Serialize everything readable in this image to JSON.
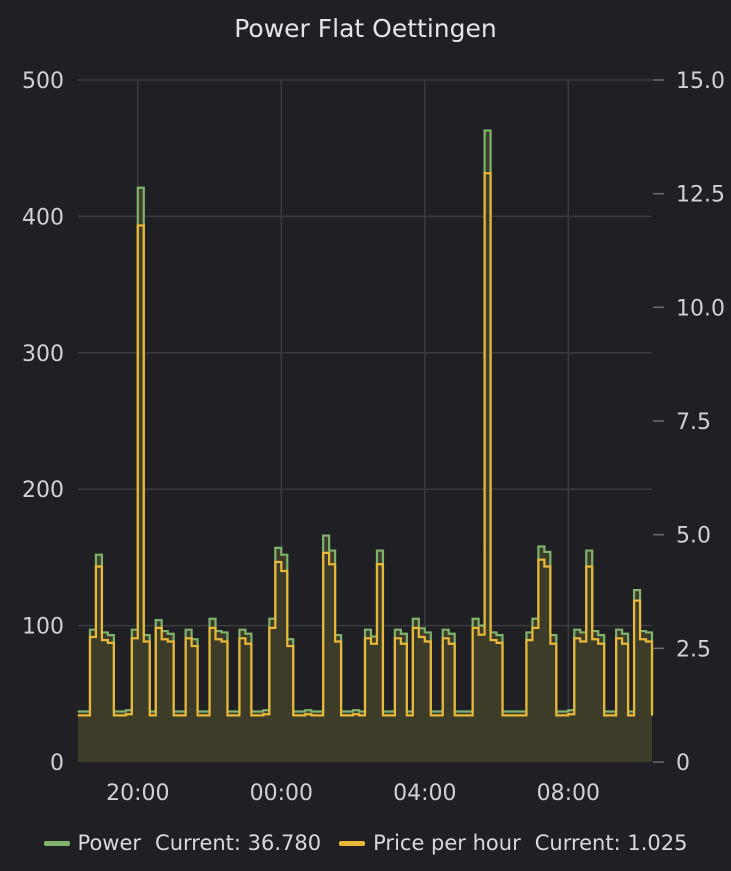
{
  "chart_data": {
    "type": "line",
    "title": "Power Flat Oettingen",
    "x_tick_labels": [
      "20:00",
      "00:00",
      "04:00",
      "08:00"
    ],
    "x_range": [
      "18:20",
      "10:20"
    ],
    "y_left": {
      "range": [
        0,
        500
      ],
      "ticks": [
        "0",
        "100",
        "200",
        "300",
        "400",
        "500"
      ]
    },
    "y_right": {
      "range": [
        0,
        15
      ],
      "ticks": [
        "0",
        "2.5",
        "5.0",
        "7.5",
        "10.0",
        "12.5",
        "15.0"
      ]
    },
    "grid": true,
    "legend_position": "bottom",
    "series": [
      {
        "name": "Power",
        "axis": "left",
        "color": "#7eb26d",
        "fill": true,
        "legend_text": "Current: 36.780",
        "x": [
          "18:20",
          "18:30",
          "18:40",
          "18:50",
          "19:00",
          "19:10",
          "19:20",
          "19:30",
          "19:40",
          "19:50",
          "20:00",
          "20:10",
          "20:20",
          "20:30",
          "20:40",
          "20:50",
          "21:00",
          "21:10",
          "21:20",
          "21:30",
          "21:40",
          "21:50",
          "22:00",
          "22:10",
          "22:20",
          "22:30",
          "22:40",
          "22:50",
          "23:00",
          "23:10",
          "23:20",
          "23:30",
          "23:40",
          "23:50",
          "00:00",
          "00:10",
          "00:20",
          "00:30",
          "00:40",
          "00:50",
          "01:00",
          "01:10",
          "01:20",
          "01:30",
          "01:40",
          "01:50",
          "02:00",
          "02:10",
          "02:20",
          "02:30",
          "02:40",
          "02:50",
          "03:00",
          "03:10",
          "03:20",
          "03:30",
          "03:40",
          "03:50",
          "04:00",
          "04:10",
          "04:20",
          "04:30",
          "04:40",
          "04:50",
          "05:00",
          "05:10",
          "05:20",
          "05:30",
          "05:40",
          "05:50",
          "06:00",
          "06:10",
          "06:20",
          "06:30",
          "06:40",
          "06:50",
          "07:00",
          "07:10",
          "07:20",
          "07:30",
          "07:40",
          "07:50",
          "08:00",
          "08:10",
          "08:20",
          "08:30",
          "08:40",
          "08:50",
          "09:00",
          "09:10",
          "09:20",
          "09:30",
          "09:40",
          "09:50",
          "10:00",
          "10:10",
          "10:20"
        ],
        "values": [
          37,
          37,
          97,
          152,
          95,
          93,
          37,
          37,
          38,
          97,
          421,
          93,
          37,
          104,
          96,
          94,
          37,
          37,
          97,
          90,
          37,
          37,
          105,
          96,
          95,
          37,
          37,
          97,
          94,
          37,
          37,
          38,
          105,
          157,
          152,
          90,
          37,
          37,
          38,
          37,
          37,
          166,
          155,
          93,
          37,
          37,
          38,
          37,
          97,
          92,
          155,
          37,
          37,
          97,
          94,
          37,
          105,
          98,
          95,
          37,
          37,
          97,
          94,
          37,
          37,
          37,
          105,
          100,
          463,
          95,
          93,
          37,
          37,
          37,
          37,
          95,
          105,
          158,
          154,
          93,
          37,
          37,
          38,
          97,
          95,
          155,
          96,
          93,
          37,
          37,
          97,
          94,
          37,
          126,
          96,
          95,
          37
        ]
      },
      {
        "name": "Price per hour",
        "axis": "right",
        "color": "#eab839",
        "fill": false,
        "legend_text": "Current: 1.025",
        "x": [
          "18:20",
          "18:30",
          "18:40",
          "18:50",
          "19:00",
          "19:10",
          "19:20",
          "19:30",
          "19:40",
          "19:50",
          "20:00",
          "20:10",
          "20:20",
          "20:30",
          "20:40",
          "20:50",
          "21:00",
          "21:10",
          "21:20",
          "21:30",
          "21:40",
          "21:50",
          "22:00",
          "22:10",
          "22:20",
          "22:30",
          "22:40",
          "22:50",
          "23:00",
          "23:10",
          "23:20",
          "23:30",
          "23:40",
          "23:50",
          "00:00",
          "00:10",
          "00:20",
          "00:30",
          "00:40",
          "00:50",
          "01:00",
          "01:10",
          "01:20",
          "01:30",
          "01:40",
          "01:50",
          "02:00",
          "02:10",
          "02:20",
          "02:30",
          "02:40",
          "02:50",
          "03:00",
          "03:10",
          "03:20",
          "03:30",
          "03:40",
          "03:50",
          "04:00",
          "04:10",
          "04:20",
          "04:30",
          "04:40",
          "04:50",
          "05:00",
          "05:10",
          "05:20",
          "05:30",
          "05:40",
          "05:50",
          "06:00",
          "06:10",
          "06:20",
          "06:30",
          "06:40",
          "06:50",
          "07:00",
          "07:10",
          "07:20",
          "07:30",
          "07:40",
          "07:50",
          "08:00",
          "08:10",
          "08:20",
          "08:30",
          "08:40",
          "08:50",
          "09:00",
          "09:10",
          "09:20",
          "09:30",
          "09:40",
          "09:50",
          "10:00",
          "10:10",
          "10:20"
        ],
        "values": [
          1.025,
          1.025,
          2.75,
          4.3,
          2.68,
          2.62,
          1.025,
          1.025,
          1.05,
          2.72,
          11.8,
          2.65,
          1.025,
          2.95,
          2.7,
          2.65,
          1.025,
          1.025,
          2.72,
          2.55,
          1.025,
          1.025,
          2.95,
          2.7,
          2.65,
          1.025,
          1.025,
          2.72,
          2.6,
          1.025,
          1.025,
          1.05,
          2.95,
          4.4,
          4.2,
          2.55,
          1.025,
          1.025,
          1.05,
          1.025,
          1.025,
          4.6,
          4.35,
          2.65,
          1.025,
          1.025,
          1.05,
          1.025,
          2.72,
          2.6,
          4.35,
          1.025,
          1.025,
          2.72,
          2.6,
          1.025,
          2.95,
          2.75,
          2.65,
          1.025,
          1.025,
          2.72,
          2.6,
          1.025,
          1.025,
          1.025,
          2.95,
          2.8,
          12.95,
          2.68,
          2.62,
          1.025,
          1.025,
          1.025,
          1.025,
          2.68,
          2.95,
          4.45,
          4.3,
          2.6,
          1.025,
          1.025,
          1.05,
          2.72,
          2.65,
          4.3,
          2.7,
          2.6,
          1.025,
          1.025,
          2.72,
          2.6,
          1.025,
          3.55,
          2.7,
          2.65,
          1.025
        ]
      }
    ]
  }
}
